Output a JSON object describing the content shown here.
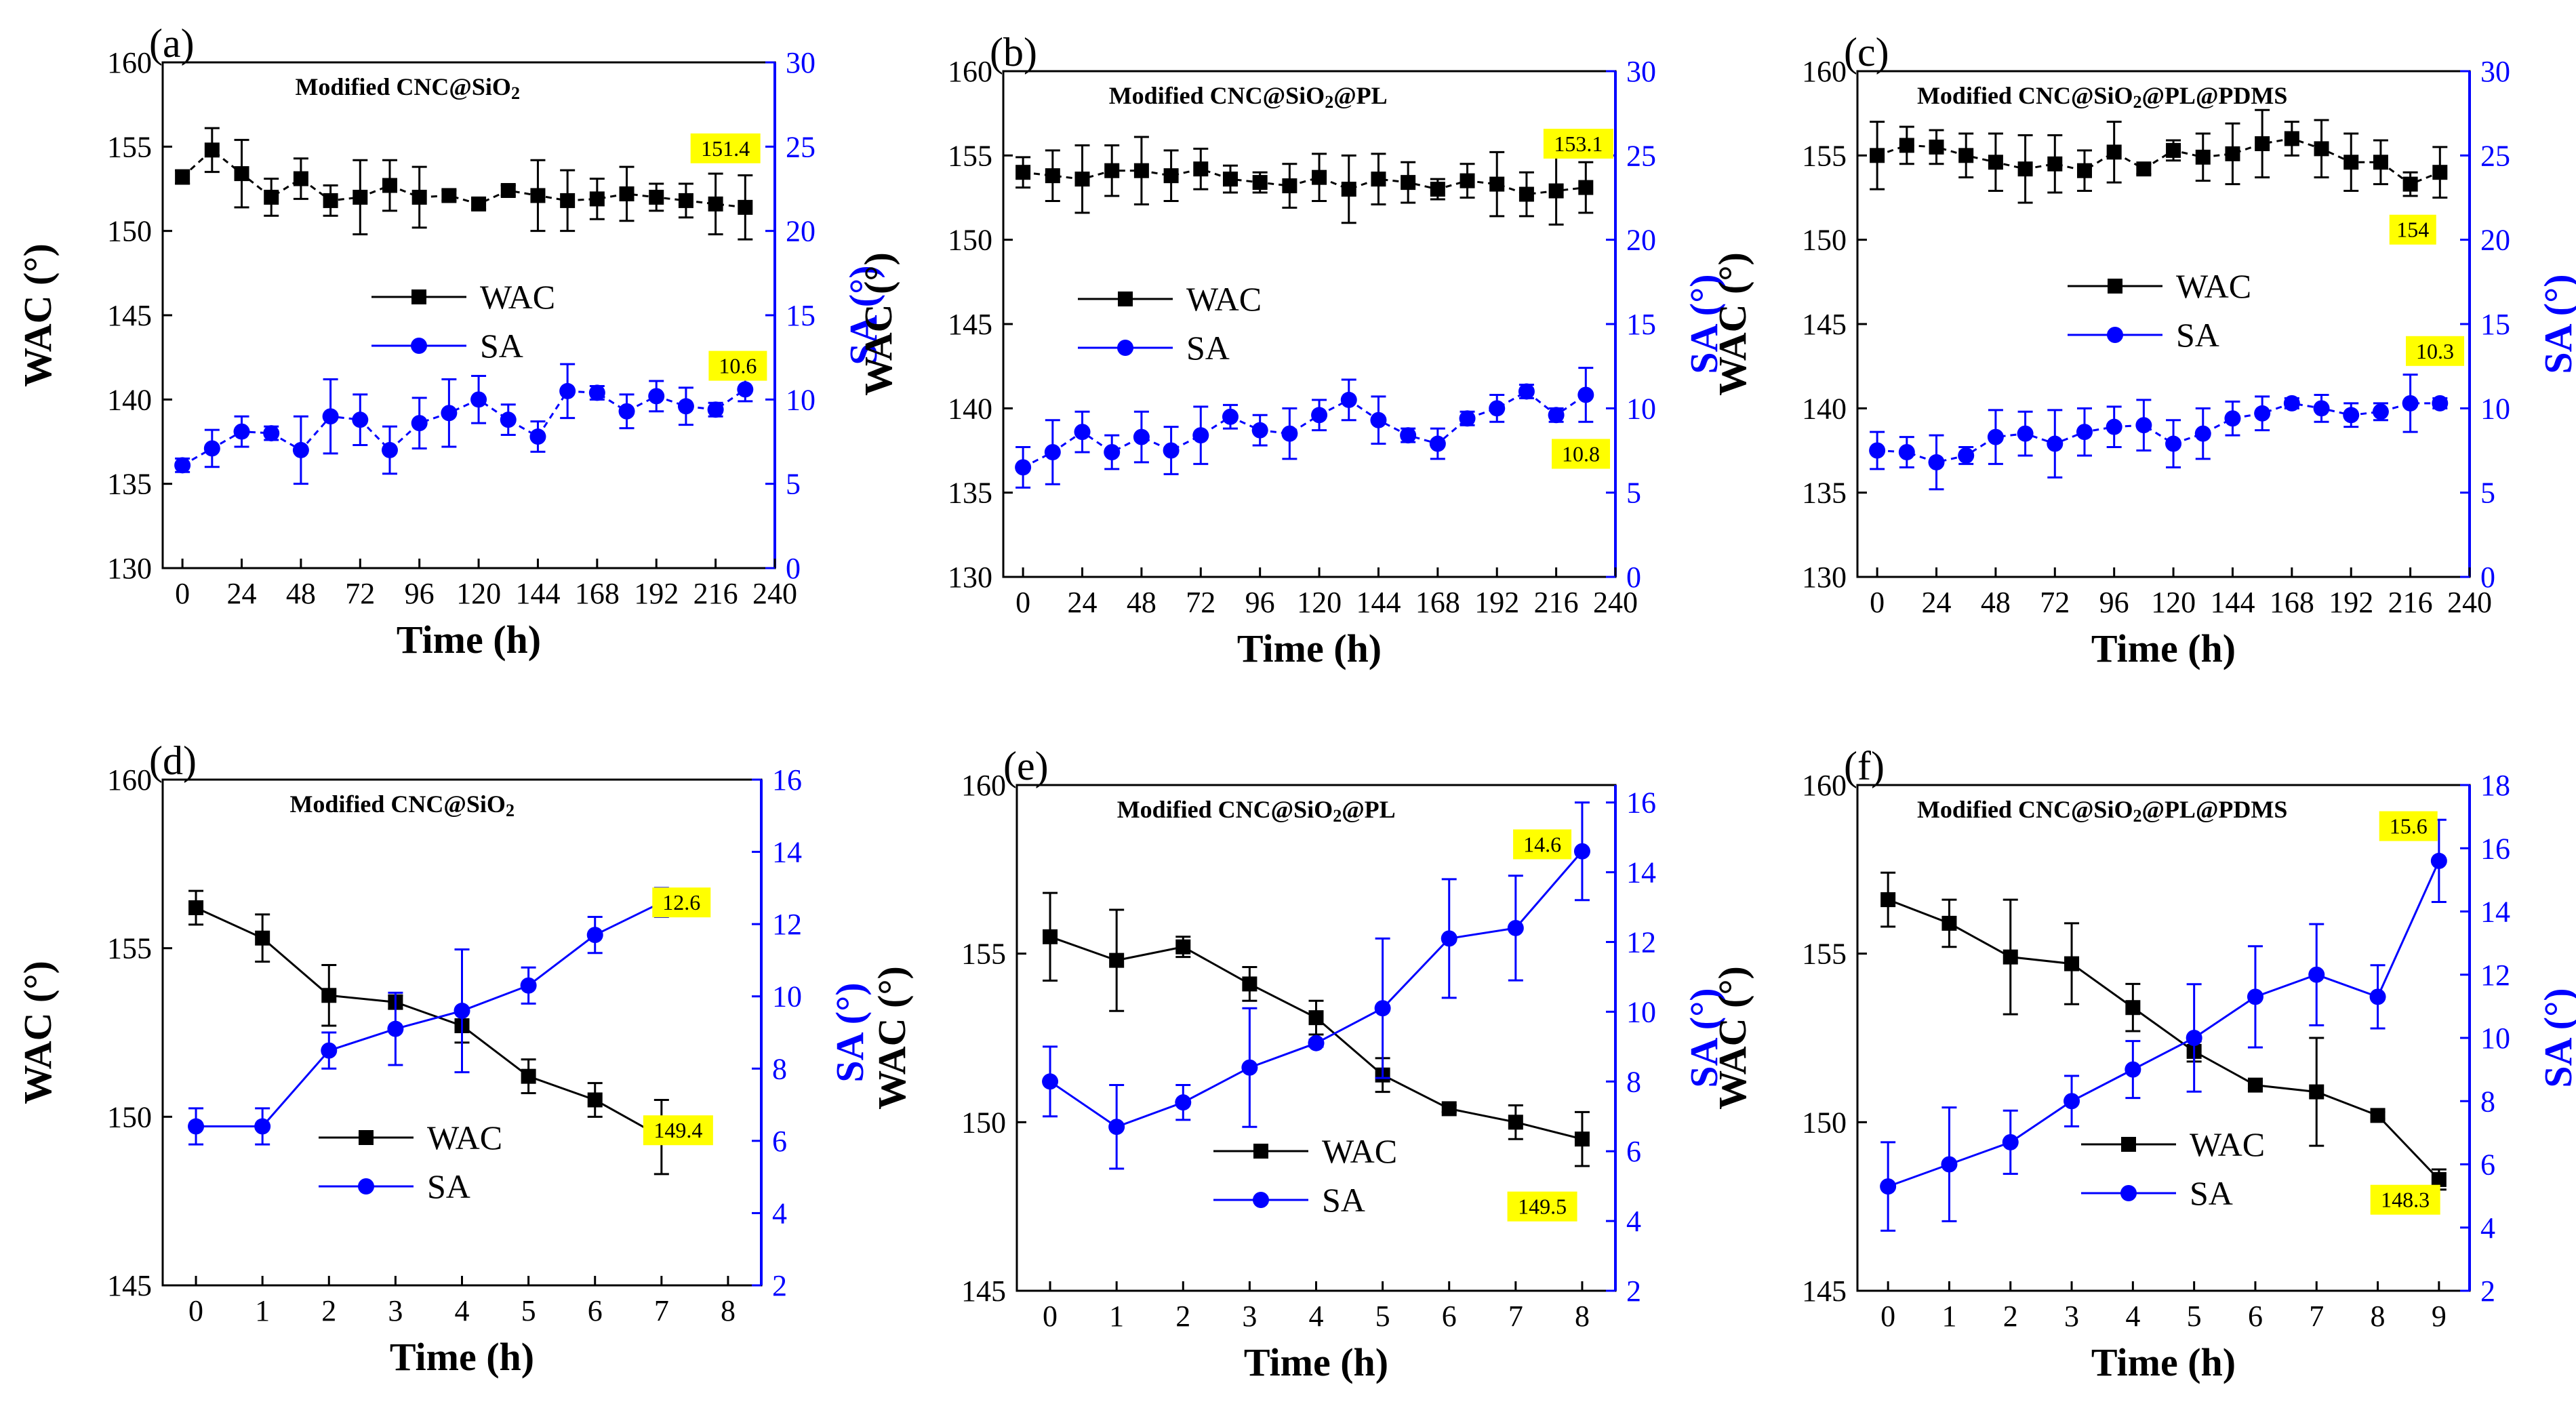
{
  "colors": {
    "wac": "#000000",
    "sa": "#0000ff",
    "annotation_bg": "#ffff00"
  },
  "chart_data": [
    {
      "id": "a",
      "panel_label": "(a)",
      "type": "line",
      "title_parts": [
        [
          "Modified CNC@SiO",
          ""
        ],
        [
          "2",
          "sub"
        ]
      ],
      "xlabel": "Time (h)",
      "ylabel_left": "WAC (°)",
      "ylabel_right": "SA (°)",
      "xlim": [
        -8,
        240
      ],
      "xticks": [
        0,
        24,
        48,
        72,
        96,
        120,
        144,
        168,
        192,
        216,
        240
      ],
      "ylim_left": [
        130,
        160
      ],
      "yticks_left": [
        130,
        135,
        140,
        145,
        150,
        155,
        160
      ],
      "ylim_right": [
        0,
        30
      ],
      "yticks_right": [
        0,
        5,
        10,
        15,
        20,
        25,
        30
      ],
      "legend": [
        "WAC",
        "SA"
      ],
      "series": [
        {
          "name": "WAC",
          "axis": "left",
          "marker": "square",
          "linestyle": "dashed",
          "x": [
            0,
            12,
            24,
            36,
            48,
            60,
            72,
            84,
            96,
            108,
            120,
            132,
            144,
            156,
            168,
            180,
            192,
            204,
            216,
            228
          ],
          "values": [
            153.2,
            154.8,
            153.4,
            152.0,
            153.1,
            151.8,
            152.0,
            152.7,
            152.0,
            152.1,
            151.6,
            152.4,
            152.1,
            151.8,
            151.9,
            152.2,
            152.0,
            151.8,
            151.6,
            151.4
          ],
          "errors": [
            0.4,
            1.3,
            2.0,
            1.1,
            1.2,
            0.9,
            2.2,
            1.5,
            1.8,
            0.3,
            0.3,
            0.3,
            2.1,
            1.8,
            1.2,
            1.6,
            0.8,
            1.0,
            1.8,
            1.9
          ]
        },
        {
          "name": "SA",
          "axis": "right",
          "marker": "circle",
          "linestyle": "dashed",
          "x": [
            0,
            12,
            24,
            36,
            48,
            60,
            72,
            84,
            96,
            108,
            120,
            132,
            144,
            156,
            168,
            180,
            192,
            204,
            216,
            228
          ],
          "values": [
            6.1,
            7.1,
            8.1,
            8.0,
            7.0,
            9.0,
            8.8,
            7.0,
            8.6,
            9.2,
            10.0,
            8.8,
            7.8,
            10.5,
            10.4,
            9.3,
            10.2,
            9.6,
            9.4,
            10.6
          ],
          "errors": [
            0.4,
            1.1,
            0.9,
            0.4,
            2.0,
            2.2,
            1.5,
            1.4,
            1.5,
            2.0,
            1.4,
            0.9,
            0.9,
            1.6,
            0.4,
            1.0,
            0.9,
            1.1,
            0.4,
            0.7
          ]
        }
      ],
      "annotations": [
        {
          "text": "151.4",
          "x": 220,
          "axis": "left",
          "y": 154.9
        },
        {
          "text": "10.6",
          "x": 225,
          "axis": "right",
          "y": 12.0
        }
      ]
    },
    {
      "id": "b",
      "panel_label": "(b)",
      "type": "line",
      "title_parts": [
        [
          "Modified CNC@SiO",
          ""
        ],
        [
          "2",
          "sub"
        ],
        [
          "@PL",
          ""
        ]
      ],
      "xlabel": "Time (h)",
      "ylabel_left": "WAC (°)",
      "ylabel_right": "SA (°)",
      "xlim": [
        -8,
        240
      ],
      "xticks": [
        0,
        24,
        48,
        72,
        96,
        120,
        144,
        168,
        192,
        216,
        240
      ],
      "ylim_left": [
        130,
        160
      ],
      "yticks_left": [
        130,
        135,
        140,
        145,
        150,
        155,
        160
      ],
      "ylim_right": [
        0,
        30
      ],
      "yticks_right": [
        0,
        5,
        10,
        15,
        20,
        25,
        30
      ],
      "legend": [
        "WAC",
        "SA"
      ],
      "series": [
        {
          "name": "WAC",
          "axis": "left",
          "marker": "square",
          "linestyle": "dashed",
          "x": [
            0,
            12,
            24,
            36,
            48,
            60,
            72,
            84,
            96,
            108,
            120,
            132,
            144,
            156,
            168,
            180,
            192,
            204,
            216,
            228
          ],
          "values": [
            154.0,
            153.8,
            153.6,
            154.1,
            154.1,
            153.8,
            154.2,
            153.6,
            153.4,
            153.2,
            153.7,
            153.0,
            153.6,
            153.4,
            153.0,
            153.5,
            153.3,
            152.7,
            152.9,
            153.1
          ],
          "errors": [
            0.9,
            1.5,
            2.0,
            1.5,
            2.0,
            1.5,
            1.2,
            0.8,
            0.6,
            1.3,
            1.4,
            2.0,
            1.5,
            1.2,
            0.6,
            1.0,
            1.9,
            1.3,
            2.0,
            1.5
          ]
        },
        {
          "name": "SA",
          "axis": "right",
          "marker": "circle",
          "linestyle": "dashed",
          "x": [
            0,
            12,
            24,
            36,
            48,
            60,
            72,
            84,
            96,
            108,
            120,
            132,
            144,
            156,
            168,
            180,
            192,
            204,
            216,
            228
          ],
          "values": [
            6.5,
            7.4,
            8.6,
            7.4,
            8.3,
            7.5,
            8.4,
            9.5,
            8.7,
            8.5,
            9.6,
            10.5,
            9.3,
            8.4,
            7.9,
            9.4,
            10.0,
            11.0,
            9.6,
            10.8
          ],
          "errors": [
            1.2,
            1.9,
            1.2,
            1.0,
            1.5,
            1.4,
            1.7,
            0.7,
            0.9,
            1.5,
            0.9,
            1.2,
            1.4,
            0.4,
            0.9,
            0.4,
            0.8,
            0.4,
            0.4,
            1.6
          ]
        }
      ],
      "annotations": [
        {
          "text": "153.1",
          "x": 225,
          "axis": "left",
          "y": 155.7
        },
        {
          "text": "10.8",
          "x": 226,
          "axis": "right",
          "y": 7.3
        }
      ]
    },
    {
      "id": "c",
      "panel_label": "(c)",
      "type": "line",
      "title_parts": [
        [
          "Modified CNC@SiO",
          ""
        ],
        [
          "2",
          "sub"
        ],
        [
          "@PL@PDMS",
          ""
        ]
      ],
      "xlabel": "Time (h)",
      "ylabel_left": "WAC (°)",
      "ylabel_right": "SA (°)",
      "xlim": [
        -8,
        240
      ],
      "xticks": [
        0,
        24,
        48,
        72,
        96,
        120,
        144,
        168,
        192,
        216,
        240
      ],
      "ylim_left": [
        130,
        160
      ],
      "yticks_left": [
        130,
        135,
        140,
        145,
        150,
        155,
        160
      ],
      "ylim_right": [
        0,
        30
      ],
      "yticks_right": [
        0,
        5,
        10,
        15,
        20,
        25,
        30
      ],
      "legend": [
        "WAC",
        "SA"
      ],
      "series": [
        {
          "name": "WAC",
          "axis": "left",
          "marker": "square",
          "linestyle": "dashed",
          "x": [
            0,
            12,
            24,
            36,
            48,
            60,
            72,
            84,
            96,
            108,
            120,
            132,
            144,
            156,
            168,
            180,
            192,
            204,
            216,
            228
          ],
          "values": [
            155.0,
            155.6,
            155.5,
            155.0,
            154.6,
            154.2,
            154.5,
            154.1,
            155.2,
            154.2,
            155.3,
            154.9,
            155.1,
            155.7,
            156.0,
            155.4,
            154.6,
            154.6,
            153.3,
            154.0
          ],
          "errors": [
            2.0,
            1.1,
            1.0,
            1.3,
            1.7,
            2.0,
            1.7,
            1.2,
            1.8,
            0.3,
            0.6,
            1.4,
            1.8,
            2.0,
            1.0,
            1.7,
            1.7,
            1.3,
            0.7,
            1.5
          ]
        },
        {
          "name": "SA",
          "axis": "right",
          "marker": "circle",
          "linestyle": "dashed",
          "x": [
            0,
            12,
            24,
            36,
            48,
            60,
            72,
            84,
            96,
            108,
            120,
            132,
            144,
            156,
            168,
            180,
            192,
            204,
            216,
            228
          ],
          "values": [
            7.5,
            7.4,
            6.8,
            7.2,
            8.3,
            8.5,
            7.9,
            8.6,
            8.9,
            9.0,
            7.9,
            8.5,
            9.4,
            9.7,
            10.3,
            10.0,
            9.6,
            9.8,
            10.3,
            10.3
          ],
          "errors": [
            1.1,
            0.9,
            1.6,
            0.5,
            1.6,
            1.3,
            2.0,
            1.4,
            1.2,
            1.5,
            1.4,
            1.5,
            1.0,
            1.0,
            0.3,
            0.8,
            0.7,
            0.5,
            1.7,
            0.3
          ]
        }
      ],
      "annotations": [
        {
          "text": "154",
          "x": 217,
          "axis": "left",
          "y": 150.6
        },
        {
          "text": "10.3",
          "x": 226,
          "axis": "right",
          "y": 13.4
        }
      ]
    },
    {
      "id": "d",
      "panel_label": "(d)",
      "type": "line",
      "title_parts": [
        [
          "Modified CNC@SiO",
          ""
        ],
        [
          "2",
          "sub"
        ]
      ],
      "xlabel": "Time (h)",
      "ylabel_left": "WAC (°)",
      "ylabel_right": "SA (°)",
      "xlim": [
        -0.5,
        8.5
      ],
      "xticks": [
        0,
        1,
        2,
        3,
        4,
        5,
        6,
        7,
        8
      ],
      "ylim_left": [
        145,
        160
      ],
      "yticks_left": [
        145,
        150,
        155,
        160
      ],
      "ylim_right": [
        2,
        16
      ],
      "yticks_right": [
        2,
        4,
        6,
        8,
        10,
        12,
        14,
        16
      ],
      "legend": [
        "WAC",
        "SA"
      ],
      "series": [
        {
          "name": "WAC",
          "axis": "left",
          "marker": "square",
          "linestyle": "solid",
          "x": [
            0,
            1,
            2,
            3,
            4,
            5,
            6,
            7
          ],
          "values": [
            156.2,
            155.3,
            153.6,
            153.4,
            152.7,
            151.2,
            150.5,
            149.4
          ],
          "errors": [
            0.5,
            0.7,
            0.9,
            0.2,
            0.5,
            0.5,
            0.5,
            1.1
          ]
        },
        {
          "name": "SA",
          "axis": "right",
          "marker": "circle",
          "linestyle": "solid",
          "x": [
            0,
            1,
            2,
            3,
            4,
            5,
            6,
            7
          ],
          "values": [
            6.4,
            6.4,
            8.5,
            9.1,
            9.6,
            10.3,
            11.7,
            12.6
          ],
          "errors": [
            0.5,
            0.5,
            0.5,
            1.0,
            1.7,
            0.5,
            0.5,
            0.4
          ]
        }
      ],
      "annotations": [
        {
          "text": "12.6",
          "x": 7.3,
          "axis": "right",
          "y": 12.6
        },
        {
          "text": "149.4",
          "x": 7.25,
          "axis": "left",
          "y": 149.6
        }
      ]
    },
    {
      "id": "e",
      "panel_label": "(e)",
      "type": "line",
      "title_parts": [
        [
          "Modified CNC@SiO",
          ""
        ],
        [
          "2",
          "sub"
        ],
        [
          "@PL",
          ""
        ]
      ],
      "xlabel": "Time (h)",
      "ylabel_left": "WAC (°)",
      "ylabel_right": "SA (°)",
      "xlim": [
        -0.5,
        8.5
      ],
      "xticks": [
        0,
        1,
        2,
        3,
        4,
        5,
        6,
        7,
        8
      ],
      "ylim_left": [
        145,
        160
      ],
      "yticks_left": [
        145,
        150,
        155,
        160
      ],
      "ylim_right": [
        2,
        16.5
      ],
      "yticks_right": [
        2,
        4,
        6,
        8,
        10,
        12,
        14,
        16
      ],
      "legend": [
        "WAC",
        "SA"
      ],
      "series": [
        {
          "name": "WAC",
          "axis": "left",
          "marker": "square",
          "linestyle": "solid",
          "x": [
            0,
            1,
            2,
            3,
            4,
            5,
            6,
            7,
            8
          ],
          "values": [
            155.5,
            154.8,
            155.2,
            154.1,
            153.1,
            151.4,
            150.4,
            150.0,
            149.5
          ],
          "errors": [
            1.3,
            1.5,
            0.3,
            0.5,
            0.5,
            0.5,
            0.1,
            0.5,
            0.8
          ]
        },
        {
          "name": "SA",
          "axis": "right",
          "marker": "circle",
          "linestyle": "solid",
          "x": [
            0,
            1,
            2,
            3,
            4,
            5,
            6,
            7,
            8
          ],
          "values": [
            8.0,
            6.7,
            7.4,
            8.4,
            9.1,
            10.1,
            12.1,
            12.4,
            14.6
          ],
          "errors": [
            1.0,
            1.2,
            0.5,
            1.7,
            0.1,
            2.0,
            1.7,
            1.5,
            1.4
          ]
        }
      ],
      "annotations": [
        {
          "text": "14.6",
          "x": 7.4,
          "axis": "right",
          "y": 14.8
        },
        {
          "text": "149.5",
          "x": 7.4,
          "axis": "left",
          "y": 147.5
        }
      ]
    },
    {
      "id": "f",
      "panel_label": "(f)",
      "type": "line",
      "title_parts": [
        [
          "Modified CNC@SiO",
          ""
        ],
        [
          "2",
          "sub"
        ],
        [
          "@PL@PDMS",
          ""
        ]
      ],
      "xlabel": "Time (h)",
      "ylabel_left": "WAC (°)",
      "ylabel_right": "SA (°)",
      "xlim": [
        -0.5,
        9.5
      ],
      "xticks": [
        0,
        1,
        2,
        3,
        4,
        5,
        6,
        7,
        8,
        9
      ],
      "ylim_left": [
        145,
        160
      ],
      "yticks_left": [
        145,
        150,
        155,
        160
      ],
      "ylim_right": [
        2,
        18
      ],
      "yticks_right": [
        2,
        4,
        6,
        8,
        10,
        12,
        14,
        16,
        18
      ],
      "legend": [
        "WAC",
        "SA"
      ],
      "series": [
        {
          "name": "WAC",
          "axis": "left",
          "marker": "square",
          "linestyle": "solid",
          "x": [
            0,
            1,
            2,
            3,
            4,
            5,
            6,
            7,
            8,
            9
          ],
          "values": [
            156.6,
            155.9,
            154.9,
            154.7,
            153.4,
            152.1,
            151.1,
            150.9,
            150.2,
            148.3
          ],
          "errors": [
            0.8,
            0.7,
            1.7,
            1.2,
            0.7,
            0.3,
            0.1,
            1.6,
            0.1,
            0.3
          ]
        },
        {
          "name": "SA",
          "axis": "right",
          "marker": "circle",
          "linestyle": "solid",
          "x": [
            0,
            1,
            2,
            3,
            4,
            5,
            6,
            7,
            8,
            9
          ],
          "values": [
            5.3,
            6.0,
            6.7,
            8.0,
            9.0,
            10.0,
            11.3,
            12.0,
            11.3,
            15.6
          ],
          "errors": [
            1.4,
            1.8,
            1.0,
            0.8,
            0.9,
            1.7,
            1.6,
            1.6,
            1.0,
            1.3
          ]
        }
      ],
      "annotations": [
        {
          "text": "15.6",
          "x": 8.5,
          "axis": "right",
          "y": 16.7
        },
        {
          "text": "148.3",
          "x": 8.45,
          "axis": "left",
          "y": 147.7
        }
      ]
    }
  ]
}
